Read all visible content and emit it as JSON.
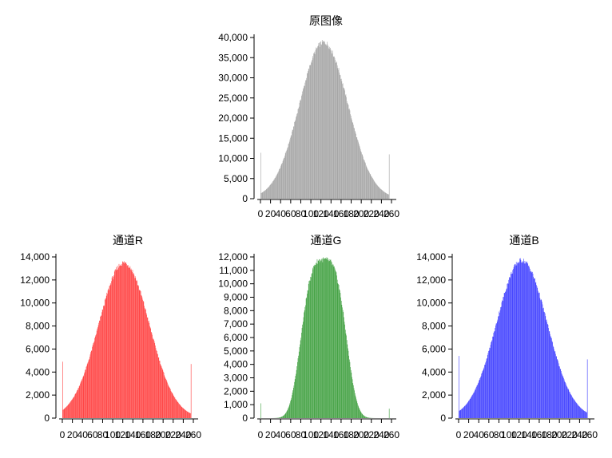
{
  "chart_data": [
    {
      "type": "bar",
      "title": "原图像",
      "color": "#a6a6a6",
      "xlim": [
        0,
        260
      ],
      "ylim": [
        0,
        40000
      ],
      "xticks": [
        0,
        20,
        40,
        60,
        80,
        100,
        120,
        140,
        160,
        180,
        200,
        220,
        240,
        260
      ],
      "xtick_labels": [
        "0",
        "20",
        "40",
        "60",
        "80",
        "100",
        "120",
        "140",
        "160",
        "180",
        "200",
        "220",
        "240",
        "260"
      ],
      "yticks": [
        0,
        5000,
        10000,
        15000,
        20000,
        25000,
        30000,
        35000,
        40000
      ],
      "ytick_labels": [
        "0",
        "5,000",
        "10,000",
        "15,000",
        "20,000",
        "25,000",
        "30,000",
        "35,000",
        "40,000"
      ],
      "peak_bin": 125,
      "peak_value": 38800,
      "spread": 48,
      "bin0_value": 11400,
      "bin255_value": 11000
    },
    {
      "type": "bar",
      "title": "通道R",
      "color": "#ff4444",
      "xlim": [
        0,
        260
      ],
      "ylim": [
        0,
        14000
      ],
      "xticks": [
        0,
        20,
        40,
        60,
        80,
        100,
        120,
        140,
        160,
        180,
        200,
        220,
        240,
        260
      ],
      "xtick_labels": [
        "0",
        "20",
        "40",
        "60",
        "80",
        "100",
        "120",
        "140",
        "160",
        "180",
        "200",
        "220",
        "240",
        "260"
      ],
      "yticks": [
        0,
        2000,
        4000,
        6000,
        8000,
        10000,
        12000,
        14000
      ],
      "ytick_labels": [
        "0",
        "2,000",
        "4,000",
        "6,000",
        "8,000",
        "10,000",
        "12,000",
        "14,000"
      ],
      "peak_bin": 122,
      "peak_value": 13500,
      "spread": 50,
      "bin0_value": 4900,
      "bin255_value": 4700
    },
    {
      "type": "bar",
      "title": "通道G",
      "color": "#44a244",
      "xlim": [
        0,
        260
      ],
      "ylim": [
        0,
        12000
      ],
      "xticks": [
        0,
        20,
        40,
        60,
        80,
        100,
        120,
        140,
        160,
        180,
        200,
        220,
        240,
        260
      ],
      "xtick_labels": [
        "0",
        "20",
        "40",
        "60",
        "80",
        "100",
        "120",
        "140",
        "160",
        "180",
        "200",
        "220",
        "240",
        "260"
      ],
      "yticks": [
        0,
        1000,
        2000,
        3000,
        4000,
        5000,
        6000,
        7000,
        8000,
        9000,
        10000,
        11000,
        12000
      ],
      "ytick_labels": [
        "0",
        "1,000",
        "2,000",
        "3,000",
        "4,000",
        "5,000",
        "6,000",
        "7,000",
        "8,000",
        "9,000",
        "10,000",
        "11,000",
        "12,000"
      ],
      "peak_bin": 125,
      "peak_value": 11800,
      "spread": 40,
      "flat_top": true,
      "bin0_value": 1100,
      "bin255_value": 700
    },
    {
      "type": "bar",
      "title": "通道B",
      "color": "#4444ff",
      "xlim": [
        0,
        260
      ],
      "ylim": [
        0,
        14000
      ],
      "xticks": [
        0,
        20,
        40,
        60,
        80,
        100,
        120,
        140,
        160,
        180,
        200,
        220,
        240,
        260
      ],
      "xtick_labels": [
        "0",
        "20",
        "40",
        "60",
        "80",
        "100",
        "120",
        "140",
        "160",
        "180",
        "200",
        "220",
        "240",
        "260"
      ],
      "yticks": [
        0,
        2000,
        4000,
        6000,
        8000,
        10000,
        12000,
        14000
      ],
      "ytick_labels": [
        "0",
        "2,000",
        "4,000",
        "6,000",
        "8,000",
        "10,000",
        "12,000",
        "14,000"
      ],
      "peak_bin": 125,
      "peak_value": 13700,
      "spread": 50,
      "bin0_value": 5400,
      "bin255_value": 5100
    }
  ]
}
